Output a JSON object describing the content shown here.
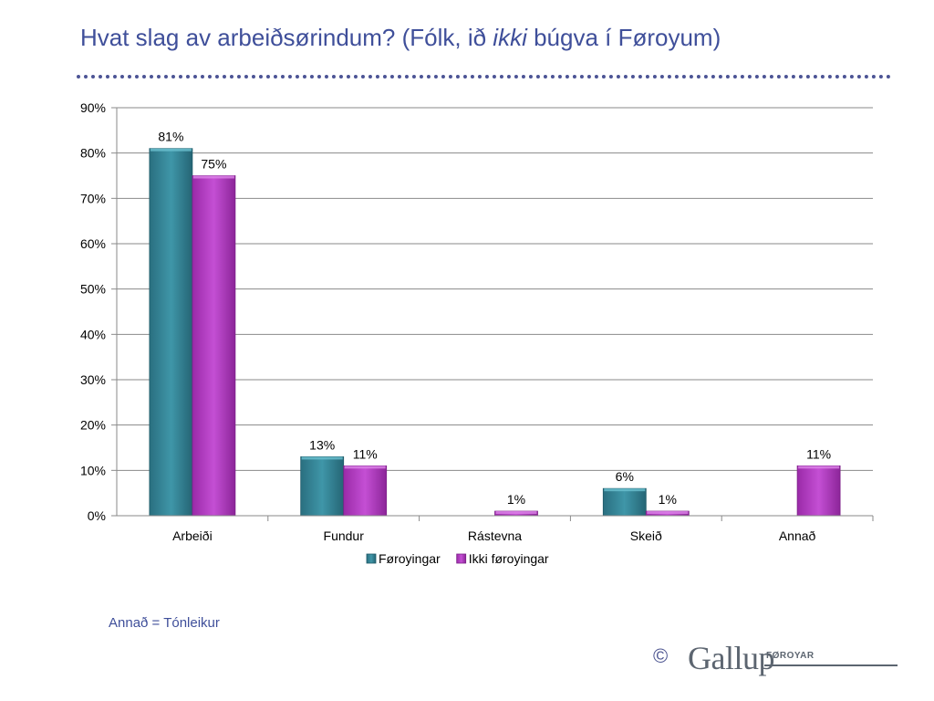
{
  "slide": {
    "title_parts": {
      "before": "Hvat slag av arbeiðsørindum? (Fólk, ið ",
      "italic": "ikki",
      "after": " búgva í Føroyum)"
    },
    "footnote": "Annað = Tónleikur",
    "logo": {
      "copyright": "©",
      "name": "Gallup",
      "sub": "FØROYAR"
    }
  },
  "chart_data": {
    "type": "bar",
    "categories": [
      "Arbeiði",
      "Fundur",
      "Rástevna",
      "Skeið",
      "Annað"
    ],
    "series": [
      {
        "name": "Føroyingar",
        "values": [
          81,
          13,
          null,
          6,
          null
        ],
        "labels": [
          "81%",
          "13%",
          "",
          "6%",
          ""
        ],
        "color": "#31859c"
      },
      {
        "name": "Ikki føroyingar",
        "values": [
          75,
          11,
          1,
          1,
          11
        ],
        "labels": [
          "75%",
          "11%",
          "1%",
          "1%",
          "11%"
        ],
        "color": "#b23fc2"
      }
    ],
    "yticks": [
      "0%",
      "10%",
      "20%",
      "30%",
      "40%",
      "50%",
      "60%",
      "70%",
      "80%",
      "90%"
    ],
    "ylim": [
      0,
      90
    ],
    "grid": true,
    "legend": "bottom"
  }
}
